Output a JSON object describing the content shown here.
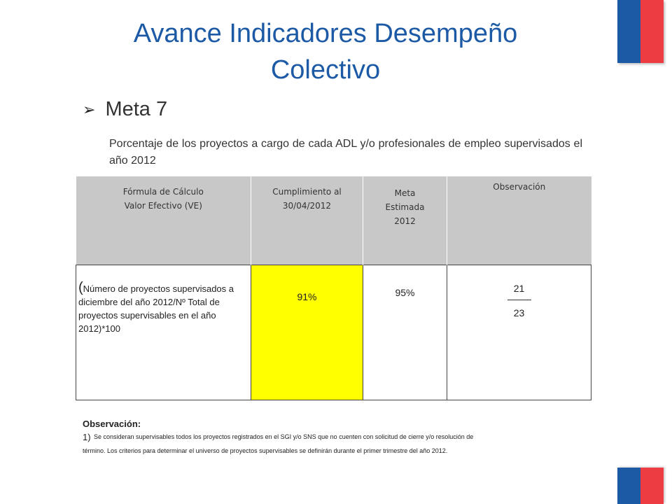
{
  "title": "Avance Indicadores Desempeño Colectivo",
  "meta": {
    "label": "Meta 7",
    "description": "Porcentaje de los proyectos a cargo de cada ADL y/o profesionales de empleo supervisados el año 2012"
  },
  "table": {
    "headers": {
      "formula_line1": "Fórmula de Cálculo",
      "formula_line2": "Valor Efectivo  (VE)",
      "cumplimiento_line1": "Cumplimiento al",
      "cumplimiento_line2": "30/04/2012",
      "meta_line1": "Meta",
      "meta_line2": "Estimada",
      "meta_line3": "2012",
      "observacion": "Observación"
    },
    "row": {
      "formula_open": "(",
      "formula_text": "Número de proyectos supervisados a diciembre del año 2012/Nº Total de proyectos supervisables en el año 2012)*100",
      "cumplimiento": "91%",
      "meta": "95%",
      "obs_numerator": "21",
      "obs_denominator": "23"
    }
  },
  "observacion": {
    "title": "Observación:",
    "number": "1)",
    "line1": "Se consideran supervisables todos los proyectos registrados en el SGI y/o SNS que no cuenten con solicitud de cierre y/o resolución de",
    "line2": "término.  Los criterios para determinar el universo de proyectos supervisables se definirán durante el primer trimestre del año 2012."
  },
  "colors": {
    "brand_blue": "#1d5aa6",
    "brand_red": "#ee3d42",
    "highlight": "#ffff00",
    "header_gray": "#c8c8c8"
  }
}
